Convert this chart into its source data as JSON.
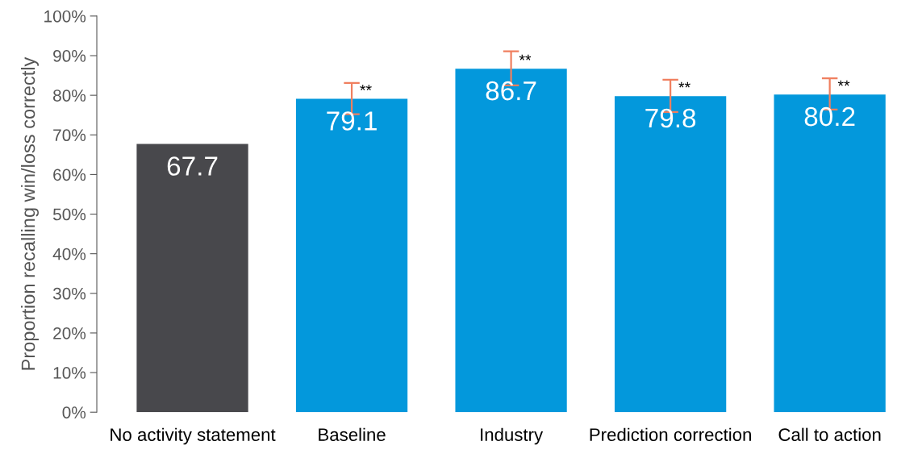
{
  "chart_data": {
    "type": "bar",
    "ylabel": "Proportion recalling win/loss correctly",
    "categories": [
      "No activity statement",
      "Baseline",
      "Industry",
      "Prediction correction",
      "Call to action"
    ],
    "values": [
      67.7,
      79.1,
      86.7,
      79.8,
      80.2
    ],
    "colors": [
      "#48484c",
      "#0398dc",
      "#0398dc",
      "#0398dc",
      "#0398dc"
    ],
    "errors": [
      null,
      [
        75.2,
        83.1
      ],
      [
        82.5,
        91.1
      ],
      [
        75.8,
        83.9
      ],
      [
        76.4,
        84.3
      ]
    ],
    "data_labels": true,
    "grid": false,
    "legend": false,
    "ylim": [
      0,
      100
    ],
    "yticks": [
      {
        "value": 0,
        "label": "0%"
      },
      {
        "value": 10,
        "label": "10%"
      },
      {
        "value": 20,
        "label": "20%"
      },
      {
        "value": 30,
        "label": "30%"
      },
      {
        "value": 40,
        "label": "40%"
      },
      {
        "value": 50,
        "label": "50%"
      },
      {
        "value": 60,
        "label": "60%"
      },
      {
        "value": 70,
        "label": "70%"
      },
      {
        "value": 80,
        "label": "80%"
      },
      {
        "value": 90,
        "label": "90%"
      },
      {
        "value": 100,
        "label": "100%"
      }
    ],
    "annotations": [
      {
        "text": "**",
        "x": "Baseline",
        "y": 79.1
      },
      {
        "text": "**",
        "x": "Industry",
        "y": 86.7
      },
      {
        "text": "**",
        "x": "Prediction correction",
        "y": 79.8
      },
      {
        "text": "**",
        "x": "Call to action",
        "y": 80.2
      }
    ]
  }
}
